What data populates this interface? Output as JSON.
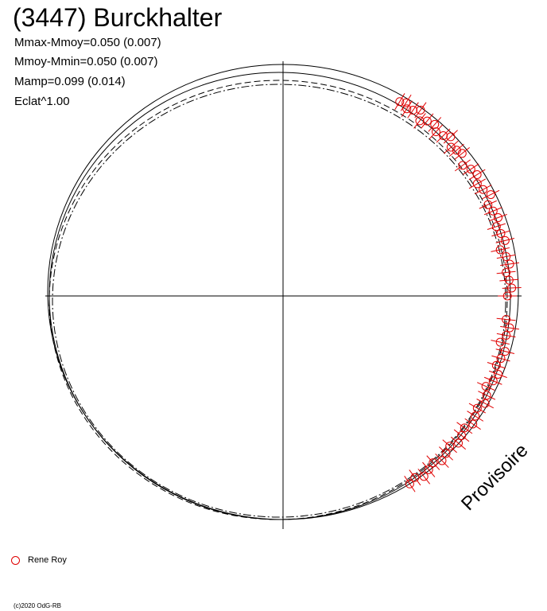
{
  "header": {
    "title": "(3447) Burckhalter",
    "stats": [
      "Mmax-Mmoy=0.050 (0.007)",
      "Mmoy-Mmin=0.050 (0.007)",
      "Mamp=0.099 (0.014)",
      "Eclat^1.00"
    ]
  },
  "watermark": "Provisoire",
  "legend": {
    "label": "Rene Roy",
    "color": "#e00000"
  },
  "copyright": "(c)2020 OdG-RB",
  "chart_data": {
    "type": "scatter",
    "projection": "polar",
    "title": "(3447) Burckhalter",
    "xlabel": "",
    "ylabel": "",
    "grid": false,
    "crosshair": true,
    "series": [
      {
        "name": "Rene Roy",
        "color": "#e00000",
        "marker": "circle-with-errorbar",
        "points_phase_deg": [
          59.0,
          57.5,
          56.5,
          55.0,
          53.5,
          52.0,
          50.5,
          48.5,
          47.0,
          45.0,
          43.5,
          41.5,
          40.0,
          38.5,
          36.0,
          34.0,
          32.0,
          30.0,
          28.0,
          26.0,
          24.0,
          22.0,
          20.0,
          18.0,
          16.0,
          14.0,
          12.0,
          10.0,
          8.0,
          6.0,
          4.0,
          2.0,
          0.0,
          -6.0,
          -8.0,
          -10.0,
          -12.0,
          -14.0,
          -16.0,
          -18.0,
          -20.0,
          -22.0,
          -24.0,
          -26.0,
          -28.0,
          -30.0,
          -32.0,
          -34.0,
          -36.0,
          -38.0,
          -40.0,
          -42.0,
          -44.0,
          -46.0,
          -48.0,
          -50.0,
          -52.0,
          -54.0,
          -56.0
        ],
        "radius_scale": [
          1.0,
          1.01,
          0.99,
          1.0,
          1.02,
          0.98,
          1.0,
          1.01,
          0.99,
          1.0,
          1.02,
          0.99,
          1.0,
          1.01,
          0.98,
          1.0,
          1.01,
          0.99,
          1.0,
          1.02,
          0.99,
          1.0,
          1.01,
          0.99,
          1.0,
          1.01,
          0.98,
          1.0,
          1.01,
          0.99,
          1.0,
          1.01,
          0.99,
          0.99,
          1.01,
          1.0,
          0.98,
          1.01,
          1.0,
          0.99,
          1.01,
          1.0,
          0.98,
          1.0,
          1.01,
          0.99,
          1.0,
          1.01,
          0.99,
          1.0,
          1.01,
          0.99,
          1.0,
          1.01,
          0.99,
          1.0,
          1.01,
          0.99,
          1.0
        ]
      }
    ],
    "model_curves": [
      {
        "style": "solid"
      },
      {
        "style": "solid"
      },
      {
        "style": "dashed"
      },
      {
        "style": "dash-dot"
      }
    ]
  }
}
